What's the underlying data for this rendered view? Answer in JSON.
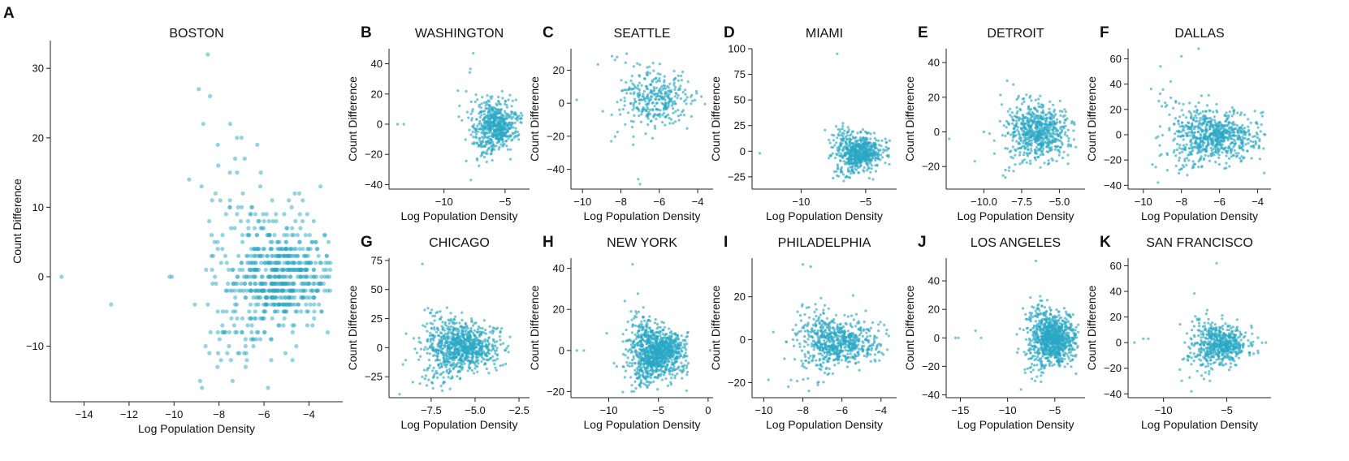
{
  "figure": {
    "point_color": "#2aa8c4",
    "note": "Scatter plots of count difference vs log population density for 11 US cities"
  },
  "chart_data": [
    {
      "letter": "A",
      "type": "scatter",
      "title": "BOSTON",
      "xlabel": "Log Population Density",
      "ylabel": "Count Difference",
      "xlim": [
        -15.5,
        -2.5
      ],
      "ylim": [
        -18,
        34
      ],
      "xticks": [
        -14,
        -12,
        -10,
        -8,
        -6,
        -4
      ],
      "yticks": [
        -10,
        0,
        10,
        20,
        30
      ],
      "cloud": {
        "center": [
          -5.5,
          0
        ],
        "spread": [
          1.4,
          4
        ],
        "n": 700,
        "xmin": -9.5,
        "xmax": -3,
        "ymin": -16,
        "ymax": 32,
        "seed": 1,
        "integer_y": true
      },
      "points": [
        [
          -15.0,
          0
        ],
        [
          -12.8,
          -4
        ],
        [
          -10.2,
          0
        ],
        [
          -10.1,
          0
        ],
        [
          -8.5,
          32
        ],
        [
          -8.9,
          27
        ],
        [
          -8.4,
          26
        ],
        [
          -8.7,
          22
        ],
        [
          -7.2,
          20
        ],
        [
          -6.3,
          19
        ],
        [
          -7.0,
          20
        ]
      ]
    },
    {
      "letter": "B",
      "type": "scatter",
      "title": "WASHINGTON",
      "xlabel": "Log Population Density",
      "ylabel": "Count Difference",
      "xlim": [
        -14.5,
        -3
      ],
      "ylim": [
        -43,
        50
      ],
      "xticks": [
        -10,
        -5
      ],
      "yticks": [
        -40,
        -20,
        0,
        20,
        40
      ],
      "cloud": {
        "center": [
          -5.8,
          -2
        ],
        "spread": [
          1.0,
          8
        ],
        "n": 600,
        "xmin": -9,
        "xmax": -3.6,
        "ymin": -30,
        "ymax": 47,
        "seed": 2
      },
      "points": [
        [
          -13.8,
          0
        ],
        [
          -13.3,
          0
        ],
        [
          -7.8,
          -37
        ],
        [
          -7.6,
          47
        ]
      ]
    },
    {
      "letter": "C",
      "type": "scatter",
      "title": "SEATTLE",
      "xlabel": "Log Population Density",
      "ylabel": "Count Difference",
      "xlim": [
        -10.6,
        -3.2
      ],
      "ylim": [
        -52,
        33
      ],
      "xticks": [
        -10,
        -8,
        -6,
        -4
      ],
      "yticks": [
        -40,
        -20,
        0,
        20
      ],
      "cloud": {
        "center": [
          -6.2,
          2
        ],
        "spread": [
          1.0,
          8
        ],
        "n": 350,
        "xmin": -9.5,
        "xmax": -3.5,
        "ymin": -30,
        "ymax": 30,
        "seed": 3
      },
      "points": [
        [
          -10.3,
          2
        ],
        [
          -7.1,
          -46
        ],
        [
          -7.0,
          -49
        ],
        [
          -8.5,
          -23
        ],
        [
          -8.2,
          28
        ],
        [
          -7.7,
          30
        ]
      ]
    },
    {
      "letter": "D",
      "type": "scatter",
      "title": "MIAMI",
      "xlabel": "Log Population Density",
      "ylabel": "Count Difference",
      "xlim": [
        -13.8,
        -2.6
      ],
      "ylim": [
        -37,
        100
      ],
      "xticks": [
        -10,
        -5
      ],
      "yticks": [
        -25,
        0,
        25,
        50,
        75,
        100
      ],
      "cloud": {
        "center": [
          -5.5,
          -2
        ],
        "spread": [
          0.9,
          9
        ],
        "n": 650,
        "xmin": -9.5,
        "xmax": -3,
        "ymin": -30,
        "ymax": 62,
        "seed": 4
      },
      "points": [
        [
          -13.2,
          -2
        ],
        [
          -7.2,
          95
        ]
      ]
    },
    {
      "letter": "E",
      "type": "scatter",
      "title": "DETROIT",
      "xlabel": "Log Population Density",
      "ylabel": "Count Difference",
      "xlim": [
        -12.5,
        -3.3
      ],
      "ylim": [
        -33,
        48
      ],
      "xticks": [
        -10.0,
        -7.5,
        -5.0
      ],
      "yticks": [
        -20,
        0,
        20,
        40
      ],
      "cloud": {
        "center": [
          -6.4,
          0
        ],
        "spread": [
          1.0,
          8
        ],
        "n": 650,
        "xmin": -10,
        "xmax": -3.8,
        "ymin": -30,
        "ymax": 47,
        "seed": 5
      },
      "points": [
        [
          -12.3,
          -4
        ],
        [
          -10.6,
          -17
        ],
        [
          -10.0,
          0
        ]
      ]
    },
    {
      "letter": "F",
      "type": "scatter",
      "title": "DALLAS",
      "xlabel": "Log Population Density",
      "ylabel": "Count Difference",
      "xlim": [
        -10.8,
        -3.3
      ],
      "ylim": [
        -43,
        68
      ],
      "xticks": [
        -10,
        -8,
        -6,
        -4
      ],
      "yticks": [
        -40,
        -20,
        0,
        20,
        40,
        60
      ],
      "cloud": {
        "center": [
          -6.3,
          -1
        ],
        "spread": [
          1.2,
          10
        ],
        "n": 750,
        "xmin": -10.5,
        "xmax": -3.6,
        "ymin": -38,
        "ymax": 65,
        "seed": 6
      },
      "points": [
        [
          -8.0,
          62
        ],
        [
          -7.1,
          68
        ]
      ]
    },
    {
      "letter": "G",
      "type": "scatter",
      "title": "CHICAGO",
      "xlabel": "Log Population Density",
      "ylabel": "Count Difference",
      "xlim": [
        -9.9,
        -1.9
      ],
      "ylim": [
        -43,
        77
      ],
      "xticks": [
        -7.5,
        -5.0,
        -2.5
      ],
      "yticks": [
        -25,
        0,
        25,
        50,
        75
      ],
      "cloud": {
        "center": [
          -5.8,
          0
        ],
        "spread": [
          1.1,
          11
        ],
        "n": 900,
        "xmin": -9.5,
        "xmax": -3,
        "ymin": -38,
        "ymax": 72,
        "seed": 7
      },
      "points": [
        [
          -8.0,
          72
        ],
        [
          -9.3,
          -40
        ]
      ]
    },
    {
      "letter": "H",
      "type": "scatter",
      "title": "NEW YORK",
      "xlabel": "Log Population Density",
      "ylabel": "Count Difference",
      "xlim": [
        -13.8,
        0.5
      ],
      "ylim": [
        -23,
        45
      ],
      "xticks": [
        -10,
        -5,
        0
      ],
      "yticks": [
        -20,
        0,
        20,
        40
      ],
      "cloud": {
        "center": [
          -5.2,
          -1
        ],
        "spread": [
          1.5,
          6
        ],
        "n": 1100,
        "xmin": -11,
        "xmax": -2,
        "ymin": -21,
        "ymax": 43,
        "seed": 8
      },
      "points": [
        [
          -13.2,
          0
        ],
        [
          -12.5,
          0
        ],
        [
          0.2,
          0
        ],
        [
          -7.6,
          42
        ]
      ]
    },
    {
      "letter": "I",
      "type": "scatter",
      "title": "PHILADELPHIA",
      "xlabel": "Log Population Density",
      "ylabel": "Count Difference",
      "xlim": [
        -10.6,
        -3.2
      ],
      "ylim": [
        -27,
        38
      ],
      "xticks": [
        -10,
        -8,
        -6,
        -4
      ],
      "yticks": [
        -20,
        0,
        20
      ],
      "cloud": {
        "center": [
          -6.3,
          -1
        ],
        "spread": [
          1.1,
          6
        ],
        "n": 700,
        "xmin": -10,
        "xmax": -3.6,
        "ymin": -25,
        "ymax": 35,
        "seed": 9
      },
      "points": [
        [
          -8.0,
          35
        ],
        [
          -7.6,
          34
        ]
      ]
    },
    {
      "letter": "J",
      "type": "scatter",
      "title": "LOS ANGELES",
      "xlabel": "Log Population Density",
      "ylabel": "Count Difference",
      "xlim": [
        -16.5,
        -1.8
      ],
      "ylim": [
        -42,
        56
      ],
      "xticks": [
        -15,
        -10,
        -5
      ],
      "yticks": [
        -40,
        -20,
        0,
        20,
        40
      ],
      "cloud": {
        "center": [
          -5.3,
          -1
        ],
        "spread": [
          1.2,
          9
        ],
        "n": 950,
        "xmin": -11,
        "xmax": -2.5,
        "ymin": -40,
        "ymax": 54,
        "seed": 10
      },
      "points": [
        [
          -15.5,
          0
        ],
        [
          -15.2,
          0
        ],
        [
          -13.4,
          5
        ],
        [
          -12.8,
          0
        ],
        [
          -7.0,
          54
        ]
      ]
    },
    {
      "letter": "K",
      "type": "scatter",
      "title": "SAN FRANCISCO",
      "xlabel": "Log Population Density",
      "ylabel": "Count Difference",
      "xlim": [
        -12.8,
        -1.5
      ],
      "ylim": [
        -43,
        66
      ],
      "xticks": [
        -10,
        -5
      ],
      "yticks": [
        -40,
        -20,
        0,
        20,
        40,
        60
      ],
      "cloud": {
        "center": [
          -5.6,
          -1
        ],
        "spread": [
          1.1,
          8
        ],
        "n": 600,
        "xmin": -9.5,
        "xmax": -2,
        "ymin": -38,
        "ymax": 62,
        "seed": 11
      },
      "points": [
        [
          -12.3,
          0
        ],
        [
          -11.6,
          3
        ],
        [
          -11.2,
          3
        ],
        [
          -5.8,
          62
        ],
        [
          -7.8,
          -38
        ],
        [
          -1.9,
          0
        ]
      ]
    }
  ]
}
